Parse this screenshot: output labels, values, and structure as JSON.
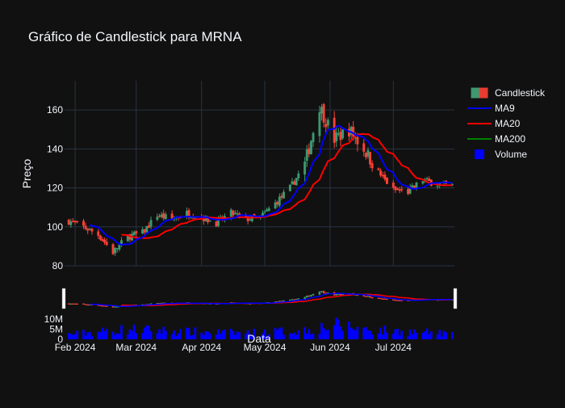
{
  "chart_data": {
    "type": "candlestick",
    "title": "Gráfico de Candlestick para MRNA",
    "xlabel": "Data",
    "ylabel": "Preço",
    "price_range": [
      80,
      175
    ],
    "price_ticks": [
      "80",
      "100",
      "120",
      "140",
      "160"
    ],
    "volume_ticks": [
      "0",
      "5M",
      "10M"
    ],
    "volume_range": [
      0,
      10000000
    ],
    "x_range": [
      "2024-01-27",
      "2024-07-30"
    ],
    "x_ticks": [
      {
        "label": "Feb 2024",
        "date": "2024-02-01"
      },
      {
        "label": "Mar 2024",
        "date": "2024-03-01"
      },
      {
        "label": "Apr 2024",
        "date": "2024-04-01"
      },
      {
        "label": "May 2024",
        "date": "2024-05-01"
      },
      {
        "label": "Jun 2024",
        "date": "2024-06-01"
      },
      {
        "label": "Jul 2024",
        "date": "2024-07-01"
      }
    ],
    "legend": {
      "position": "top-right",
      "entries": [
        {
          "name": "Candlestick",
          "color": "#3d9970"
        },
        {
          "name": "MA9",
          "color": "#0000ff"
        },
        {
          "name": "MA20",
          "color": "#ff0000"
        },
        {
          "name": "MA200",
          "color": "#008000"
        },
        {
          "name": "Volume",
          "color": "#0000ff"
        }
      ]
    },
    "colors": {
      "increasing": "#3d9970",
      "decreasing": "#ff4136",
      "ma9": "#0000ff",
      "ma20": "#ff0000",
      "volume": "#0000ff",
      "background": "#111111",
      "grid": "#283442",
      "text": "#f2f5fa"
    },
    "close_anchors": [
      [
        "2024-01-29",
        103
      ],
      [
        "2024-02-05",
        100
      ],
      [
        "2024-02-12",
        96
      ],
      [
        "2024-02-19",
        87
      ],
      [
        "2024-02-26",
        95
      ],
      [
        "2024-03-04",
        97
      ],
      [
        "2024-03-11",
        106
      ],
      [
        "2024-03-18",
        104
      ],
      [
        "2024-03-25",
        107
      ],
      [
        "2024-04-01",
        105
      ],
      [
        "2024-04-08",
        102
      ],
      [
        "2024-04-15",
        107
      ],
      [
        "2024-04-22",
        104
      ],
      [
        "2024-04-29",
        105
      ],
      [
        "2024-05-06",
        112
      ],
      [
        "2024-05-13",
        120
      ],
      [
        "2024-05-20",
        132
      ],
      [
        "2024-05-27",
        162
      ],
      [
        "2024-06-03",
        145
      ],
      [
        "2024-06-10",
        150
      ],
      [
        "2024-06-17",
        140
      ],
      [
        "2024-06-24",
        128
      ],
      [
        "2024-07-01",
        119
      ],
      [
        "2024-07-08",
        118
      ],
      [
        "2024-07-15",
        124
      ],
      [
        "2024-07-22",
        122
      ],
      [
        "2024-07-29",
        121
      ]
    ],
    "volume_anchors": [
      [
        "2024-01-29",
        2500000
      ],
      [
        "2024-02-26",
        5000000
      ],
      [
        "2024-03-25",
        3800000
      ],
      [
        "2024-04-22",
        3200000
      ],
      [
        "2024-05-20",
        4500000
      ],
      [
        "2024-06-03",
        7000000
      ],
      [
        "2024-06-24",
        4500000
      ],
      [
        "2024-07-29",
        2800000
      ]
    ]
  }
}
